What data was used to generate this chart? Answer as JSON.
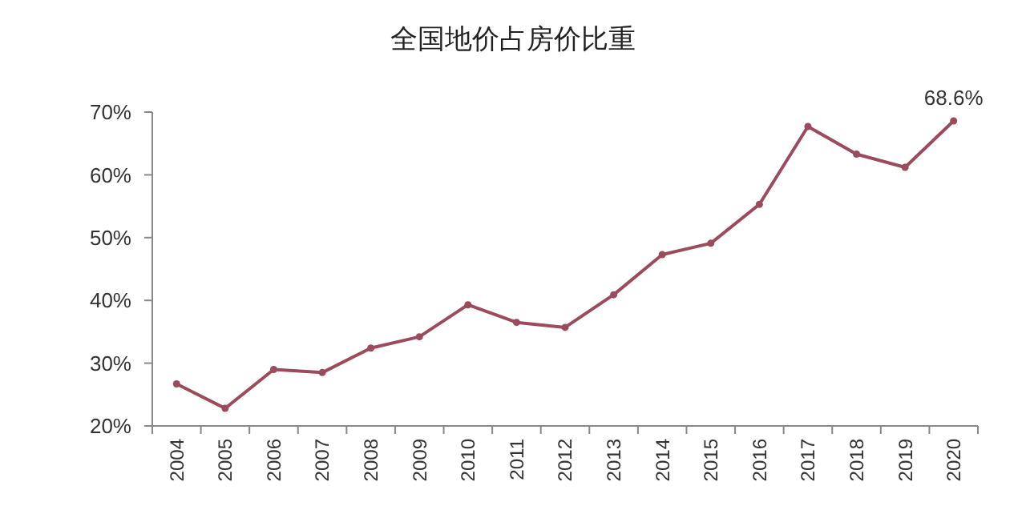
{
  "chart_data": {
    "type": "line",
    "title": "全国地价占房价比重",
    "categories": [
      "2004",
      "2005",
      "2006",
      "2007",
      "2008",
      "2009",
      "2010",
      "2011",
      "2012",
      "2013",
      "2014",
      "2015",
      "2016",
      "2017",
      "2018",
      "2019",
      "2020"
    ],
    "series": [
      {
        "color": "#9b4b5c",
        "values": [
          26.7,
          22.8,
          29.0,
          28.5,
          32.4,
          34.2,
          39.3,
          36.5,
          35.7,
          40.9,
          47.3,
          49.1,
          55.3,
          67.7,
          63.3,
          61.2,
          68.6
        ]
      }
    ],
    "ylim": [
      20,
      70
    ],
    "yticks": [
      {
        "value": 20,
        "label": "20%"
      },
      {
        "value": 30,
        "label": "30%"
      },
      {
        "value": 40,
        "label": "40%"
      },
      {
        "value": 50,
        "label": "50%"
      },
      {
        "value": 60,
        "label": "60%"
      },
      {
        "value": 70,
        "label": "70%"
      }
    ],
    "annotations": [
      {
        "text": "68.6%",
        "x": "2020",
        "y": 68.6
      }
    ],
    "marker": "circle",
    "grid": false
  }
}
